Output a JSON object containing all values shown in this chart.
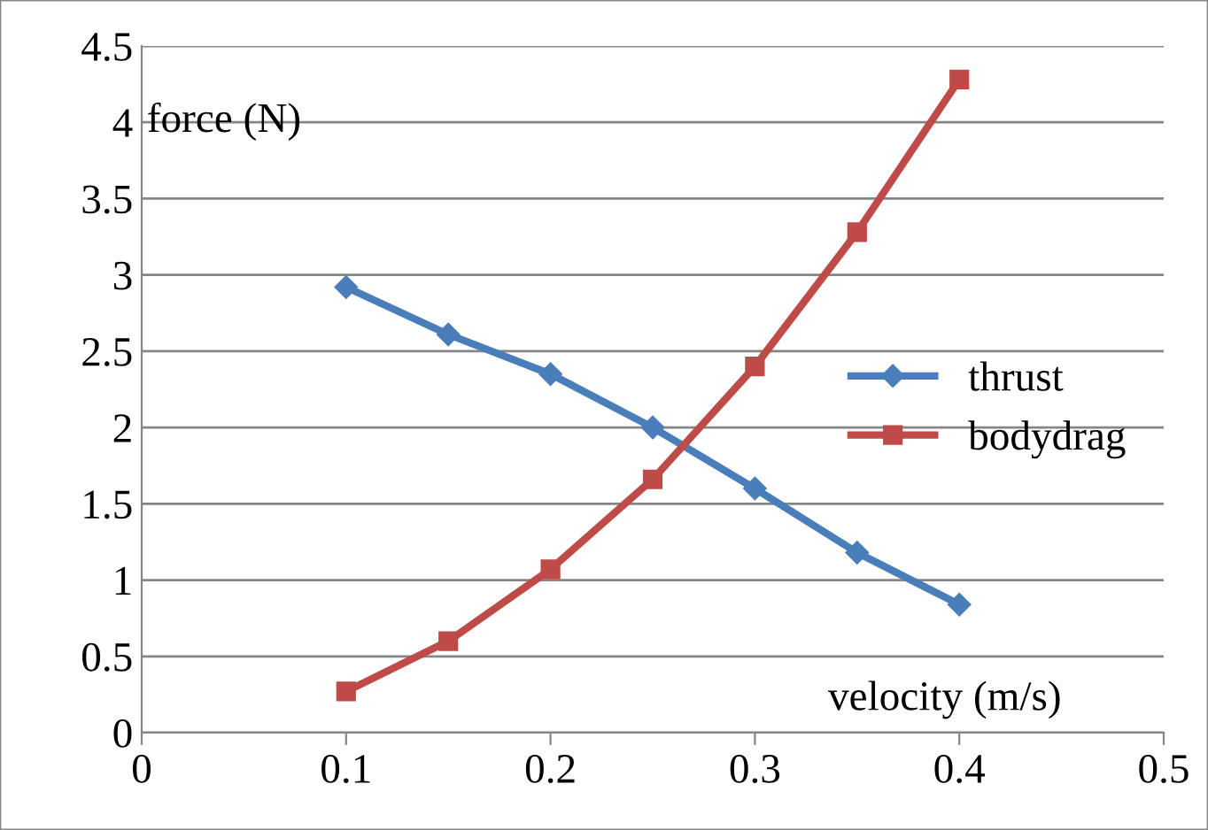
{
  "chart_data": {
    "type": "line",
    "xlabel": "velocity (m/s)",
    "ylabel": "force (N)",
    "series": [
      {
        "name": "thrust",
        "color": "#4a7ebb",
        "marker": "diamond",
        "x": [
          0.1,
          0.15,
          0.2,
          0.25,
          0.3,
          0.35,
          0.4
        ],
        "values": [
          2.92,
          2.61,
          2.35,
          2.0,
          1.6,
          1.18,
          0.84
        ]
      },
      {
        "name": "bodydrag",
        "color": "#be4b48",
        "marker": "square",
        "x": [
          0.1,
          0.15,
          0.2,
          0.25,
          0.3,
          0.35,
          0.4
        ],
        "values": [
          0.27,
          0.6,
          1.07,
          1.66,
          2.4,
          3.28,
          4.28
        ]
      }
    ],
    "xlim": [
      0,
      0.5
    ],
    "xticks": [
      0,
      0.1,
      0.2,
      0.3,
      0.4,
      0.5
    ],
    "ylim": [
      0,
      4.5
    ],
    "yticks": [
      0,
      0.5,
      1,
      1.5,
      2,
      2.5,
      3,
      3.5,
      4,
      4.5
    ],
    "grid": "y",
    "legend": "right",
    "line_style": "solid"
  }
}
